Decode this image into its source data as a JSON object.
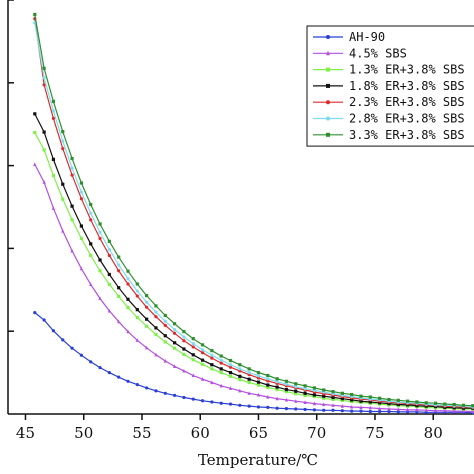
{
  "chart_data": {
    "type": "line",
    "xlabel": "Temperature/℃",
    "ylabel": "",
    "xlim": [
      43.5,
      83.5
    ],
    "ylim": [
      0,
      1.0
    ],
    "x_ticks": [
      45,
      50,
      55,
      60,
      65,
      70,
      75,
      80
    ],
    "grid": false,
    "legend_position": "top-right",
    "x": [
      45.8,
      46.6,
      47.4,
      48.2,
      49.0,
      49.8,
      50.6,
      51.4,
      52.2,
      53.0,
      53.8,
      54.6,
      55.4,
      56.2,
      57.0,
      57.8,
      58.6,
      59.4,
      60.2,
      61.0,
      61.8,
      62.6,
      63.4,
      64.2,
      65.0,
      65.8,
      66.6,
      67.4,
      68.2,
      69.0,
      69.8,
      70.6,
      71.4,
      72.2,
      73.0,
      73.8,
      74.6,
      75.4,
      76.2,
      77.0,
      77.8,
      78.6,
      79.4,
      80.2,
      81.0,
      81.8,
      82.6,
      83.4
    ],
    "series": [
      {
        "name": "AH-90",
        "color": "#2a3fd6",
        "marker": "circle",
        "values": [
          0.245,
          0.227,
          0.201,
          0.179,
          0.159,
          0.142,
          0.126,
          0.112,
          0.1,
          0.089,
          0.079,
          0.071,
          0.063,
          0.056,
          0.05,
          0.045,
          0.04,
          0.036,
          0.032,
          0.029,
          0.026,
          0.024,
          0.021,
          0.019,
          0.017,
          0.016,
          0.014,
          0.013,
          0.012,
          0.011,
          0.01,
          0.009,
          0.009,
          0.008,
          0.007,
          0.007,
          0.006,
          0.006,
          0.006,
          0.005,
          0.005,
          0.005,
          0.004,
          0.004,
          0.004,
          0.004,
          0.004,
          0.003
        ]
      },
      {
        "name": "4.5% SBS",
        "color": "#b44fe0",
        "marker": "triangle",
        "values": [
          0.603,
          0.56,
          0.497,
          0.442,
          0.394,
          0.351,
          0.313,
          0.279,
          0.249,
          0.223,
          0.199,
          0.178,
          0.16,
          0.143,
          0.128,
          0.115,
          0.104,
          0.093,
          0.084,
          0.076,
          0.068,
          0.062,
          0.056,
          0.05,
          0.046,
          0.041,
          0.037,
          0.034,
          0.031,
          0.028,
          0.025,
          0.023,
          0.021,
          0.019,
          0.017,
          0.016,
          0.015,
          0.013,
          0.012,
          0.011,
          0.01,
          0.01,
          0.009,
          0.008,
          0.008,
          0.007,
          0.007,
          0.006
        ]
      },
      {
        "name": "1.3% ER+3.8% SBS",
        "color": "#7ff04a",
        "marker": "square",
        "values": [
          0.68,
          0.638,
          0.576,
          0.519,
          0.469,
          0.424,
          0.383,
          0.346,
          0.313,
          0.284,
          0.257,
          0.233,
          0.212,
          0.192,
          0.174,
          0.159,
          0.144,
          0.131,
          0.12,
          0.109,
          0.1,
          0.091,
          0.083,
          0.076,
          0.07,
          0.064,
          0.059,
          0.054,
          0.049,
          0.045,
          0.042,
          0.038,
          0.035,
          0.033,
          0.03,
          0.028,
          0.026,
          0.024,
          0.022,
          0.02,
          0.019,
          0.018,
          0.016,
          0.015,
          0.014,
          0.013,
          0.012,
          0.012
        ]
      },
      {
        "name": "1.8% ER+3.8% SBS",
        "color": "#111111",
        "marker": "square",
        "values": [
          0.725,
          0.681,
          0.615,
          0.555,
          0.502,
          0.454,
          0.411,
          0.372,
          0.337,
          0.305,
          0.277,
          0.252,
          0.229,
          0.208,
          0.189,
          0.172,
          0.157,
          0.143,
          0.13,
          0.119,
          0.109,
          0.1,
          0.091,
          0.084,
          0.077,
          0.07,
          0.065,
          0.059,
          0.055,
          0.05,
          0.046,
          0.043,
          0.04,
          0.037,
          0.034,
          0.031,
          0.029,
          0.027,
          0.025,
          0.023,
          0.022,
          0.02,
          0.019,
          0.018,
          0.016,
          0.015,
          0.014,
          0.014
        ]
      },
      {
        "name": "2.3% ER+3.8% SBS",
        "color": "#e02a2a",
        "marker": "circle",
        "values": [
          0.955,
          0.795,
          0.714,
          0.641,
          0.577,
          0.52,
          0.469,
          0.424,
          0.383,
          0.346,
          0.314,
          0.285,
          0.258,
          0.235,
          0.214,
          0.195,
          0.177,
          0.162,
          0.148,
          0.135,
          0.123,
          0.113,
          0.104,
          0.095,
          0.087,
          0.08,
          0.074,
          0.068,
          0.063,
          0.058,
          0.053,
          0.049,
          0.046,
          0.042,
          0.039,
          0.036,
          0.034,
          0.031,
          0.029,
          0.027,
          0.025,
          0.024,
          0.022,
          0.021,
          0.019,
          0.018,
          0.017,
          0.016
        ]
      },
      {
        "name": "2.8% ER+3.8% SBS",
        "color": "#7fdcf0",
        "marker": "circle",
        "values": [
          0.945,
          0.812,
          0.732,
          0.659,
          0.594,
          0.536,
          0.485,
          0.439,
          0.397,
          0.36,
          0.327,
          0.297,
          0.27,
          0.246,
          0.224,
          0.204,
          0.186,
          0.17,
          0.155,
          0.142,
          0.13,
          0.119,
          0.109,
          0.1,
          0.092,
          0.085,
          0.078,
          0.072,
          0.066,
          0.061,
          0.057,
          0.053,
          0.049,
          0.045,
          0.042,
          0.039,
          0.036,
          0.034,
          0.031,
          0.029,
          0.027,
          0.026,
          0.024,
          0.022,
          0.021,
          0.02,
          0.019,
          0.017
        ]
      },
      {
        "name": "3.3% ER+3.8% SBS",
        "color": "#2f8f2f",
        "marker": "square",
        "values": [
          0.965,
          0.835,
          0.755,
          0.682,
          0.617,
          0.558,
          0.506,
          0.459,
          0.417,
          0.379,
          0.345,
          0.314,
          0.286,
          0.261,
          0.238,
          0.218,
          0.199,
          0.182,
          0.167,
          0.153,
          0.14,
          0.129,
          0.119,
          0.109,
          0.1,
          0.093,
          0.085,
          0.079,
          0.073,
          0.068,
          0.063,
          0.058,
          0.054,
          0.05,
          0.047,
          0.043,
          0.041,
          0.038,
          0.035,
          0.033,
          0.031,
          0.029,
          0.027,
          0.026,
          0.024,
          0.023,
          0.021,
          0.02
        ]
      }
    ]
  }
}
